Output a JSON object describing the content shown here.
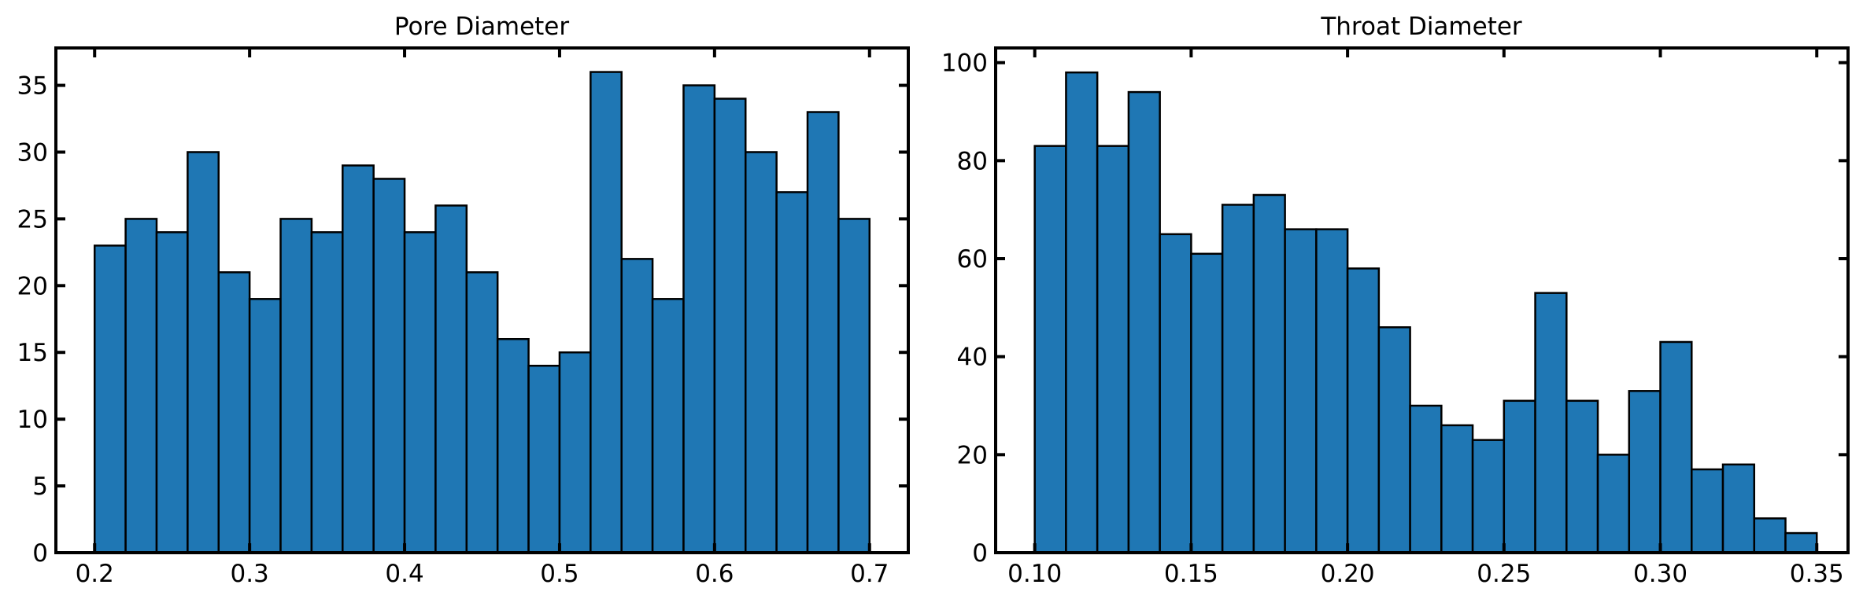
{
  "chart_data": [
    {
      "type": "bar",
      "title": "Pore Diameter",
      "xlabel": "",
      "ylabel": "",
      "xlim": [
        0.175,
        0.725
      ],
      "ylim": [
        0,
        37.8
      ],
      "x_ticks": [
        "0.2",
        "0.3",
        "0.4",
        "0.5",
        "0.6",
        "0.7"
      ],
      "y_ticks": [
        "0",
        "5",
        "10",
        "15",
        "20",
        "25",
        "30",
        "35"
      ],
      "bar_color": "#1f77b4",
      "edge_color": "#000000",
      "bin_edges": [
        0.2,
        0.22,
        0.24,
        0.26,
        0.28,
        0.3,
        0.32,
        0.34,
        0.36,
        0.38,
        0.4,
        0.42,
        0.44,
        0.46,
        0.48,
        0.5,
        0.52,
        0.54,
        0.56,
        0.58,
        0.6,
        0.62,
        0.64,
        0.66,
        0.68,
        0.7
      ],
      "values": [
        23,
        25,
        24,
        30,
        21,
        19,
        25,
        24,
        29,
        28,
        24,
        26,
        21,
        16,
        14,
        15,
        36,
        22,
        19,
        35,
        34,
        30,
        27,
        33,
        25
      ]
    },
    {
      "type": "bar",
      "title": "Throat Diameter",
      "xlabel": "",
      "ylabel": "",
      "xlim": [
        0.0875,
        0.36
      ],
      "ylim": [
        0,
        103
      ],
      "x_ticks": [
        "0.10",
        "0.15",
        "0.20",
        "0.25",
        "0.30",
        "0.35"
      ],
      "y_ticks": [
        "0",
        "20",
        "40",
        "60",
        "80",
        "100"
      ],
      "bar_color": "#1f77b4",
      "edge_color": "#000000",
      "bin_edges": [
        0.1,
        0.11,
        0.12,
        0.13,
        0.14,
        0.15,
        0.16,
        0.17,
        0.18,
        0.19,
        0.2,
        0.21,
        0.22,
        0.23,
        0.24,
        0.25,
        0.26,
        0.27,
        0.28,
        0.29,
        0.3,
        0.31,
        0.32,
        0.33,
        0.34,
        0.35
      ],
      "values": [
        83,
        98,
        83,
        94,
        65,
        61,
        71,
        73,
        66,
        66,
        58,
        46,
        30,
        26,
        23,
        31,
        53,
        31,
        20,
        33,
        43,
        17,
        18,
        7,
        4
      ]
    }
  ]
}
